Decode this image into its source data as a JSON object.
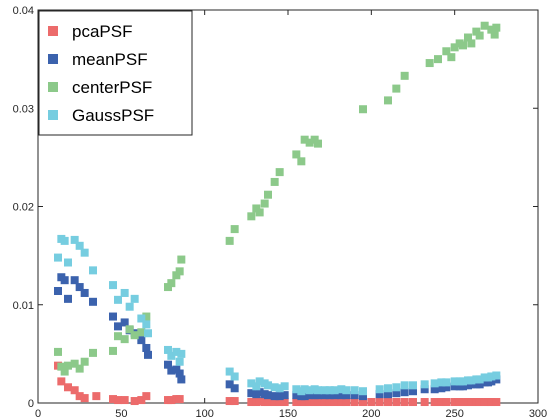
{
  "chart_data": {
    "type": "scatter",
    "title": "",
    "xlabel": "",
    "ylabel": "",
    "xlim": [
      0,
      300
    ],
    "ylim": [
      0,
      0.04
    ],
    "xticks": [
      0,
      50,
      100,
      150,
      200,
      250,
      300
    ],
    "yticks": [
      0,
      0.01,
      0.02,
      0.03,
      0.04
    ],
    "xtick_labels": [
      "0",
      "50",
      "100",
      "150",
      "200",
      "250",
      "300"
    ],
    "ytick_labels": [
      "0",
      "0.01",
      "0.02",
      "0.03",
      "0.04"
    ],
    "grid": false,
    "legend_position": "top-left",
    "series": [
      {
        "name": "pcaPSF",
        "color": "#ec6b6b",
        "points": [
          [
            12,
            0.0038
          ],
          [
            14,
            0.0022
          ],
          [
            18,
            0.0016
          ],
          [
            22,
            0.0013
          ],
          [
            25,
            0.0007
          ],
          [
            28,
            0.0005
          ],
          [
            35,
            0.0007
          ],
          [
            45,
            0.0004
          ],
          [
            48,
            0.0003
          ],
          [
            52,
            0.0003
          ],
          [
            58,
            0.0002
          ],
          [
            62,
            0.0003
          ],
          [
            65,
            0.0007
          ],
          [
            78,
            0.0003
          ],
          [
            80,
            0.0003
          ],
          [
            83,
            0.0004
          ],
          [
            85,
            0.0004
          ],
          [
            115,
            0.0002
          ],
          [
            118,
            0.0002
          ],
          [
            128,
            0.0001
          ],
          [
            131,
            0.0001
          ],
          [
            133,
            0.0002
          ],
          [
            136,
            0.0001
          ],
          [
            138,
            0.0001
          ],
          [
            142,
            0.0001
          ],
          [
            145,
            0.0001
          ],
          [
            148,
            0.0001
          ],
          [
            155,
            0.0001
          ],
          [
            158,
            0.0001
          ],
          [
            160,
            0.0001
          ],
          [
            163,
            0.0001
          ],
          [
            166,
            0.0001
          ],
          [
            168,
            0.0001
          ],
          [
            172,
            0.0001
          ],
          [
            175,
            0.0001
          ],
          [
            178,
            0.0001
          ],
          [
            182,
            0.0001
          ],
          [
            185,
            0.0001
          ],
          [
            190,
            0.0001
          ],
          [
            195,
            0.0001
          ],
          [
            200,
            0.0001
          ],
          [
            205,
            0.0001
          ],
          [
            210,
            0.0001
          ],
          [
            215,
            0.0001
          ],
          [
            220,
            0.0001
          ],
          [
            225,
            0.0001
          ],
          [
            232,
            0.0001
          ],
          [
            238,
            0.0001
          ],
          [
            242,
            0.0001
          ],
          [
            245,
            0.0001
          ],
          [
            250,
            0.0001
          ],
          [
            253,
            0.0001
          ],
          [
            255,
            0.0001
          ],
          [
            258,
            0.0001
          ],
          [
            260,
            0.0001
          ],
          [
            263,
            0.0001
          ],
          [
            265,
            0.0001
          ],
          [
            268,
            0.0001
          ],
          [
            270,
            0.0001
          ],
          [
            272,
            0.0001
          ],
          [
            275,
            0.0001
          ]
        ]
      },
      {
        "name": "meanPSF",
        "color": "#3b62ad",
        "points": [
          [
            12,
            0.0114
          ],
          [
            14,
            0.0128
          ],
          [
            16,
            0.0125
          ],
          [
            18,
            0.0106
          ],
          [
            22,
            0.0125
          ],
          [
            25,
            0.0118
          ],
          [
            28,
            0.0112
          ],
          [
            33,
            0.0103
          ],
          [
            45,
            0.0088
          ],
          [
            48,
            0.0078
          ],
          [
            52,
            0.0082
          ],
          [
            55,
            0.0074
          ],
          [
            58,
            0.0071
          ],
          [
            62,
            0.0064
          ],
          [
            65,
            0.0056
          ],
          [
            66,
            0.0049
          ],
          [
            78,
            0.0039
          ],
          [
            80,
            0.0033
          ],
          [
            83,
            0.0034
          ],
          [
            85,
            0.003
          ],
          [
            86,
            0.0024
          ],
          [
            115,
            0.0019
          ],
          [
            118,
            0.0015
          ],
          [
            128,
            0.001
          ],
          [
            131,
            0.0009
          ],
          [
            133,
            0.0011
          ],
          [
            136,
            0.0009
          ],
          [
            138,
            0.0008
          ],
          [
            142,
            0.0007
          ],
          [
            145,
            0.0007
          ],
          [
            148,
            0.0008
          ],
          [
            155,
            0.0008
          ],
          [
            158,
            0.0007
          ],
          [
            160,
            0.0007
          ],
          [
            163,
            0.0008
          ],
          [
            166,
            0.0008
          ],
          [
            168,
            0.0008
          ],
          [
            172,
            0.0008
          ],
          [
            175,
            0.0008
          ],
          [
            178,
            0.0008
          ],
          [
            182,
            0.0008
          ],
          [
            185,
            0.0008
          ],
          [
            190,
            0.0008
          ],
          [
            195,
            0.0007
          ],
          [
            205,
            0.0009
          ],
          [
            210,
            0.0009
          ],
          [
            215,
            0.001
          ],
          [
            220,
            0.0011
          ],
          [
            225,
            0.0012
          ],
          [
            232,
            0.0014
          ],
          [
            238,
            0.0014
          ],
          [
            242,
            0.0015
          ],
          [
            245,
            0.0016
          ],
          [
            250,
            0.0017
          ],
          [
            253,
            0.0017
          ],
          [
            255,
            0.0017
          ],
          [
            258,
            0.0018
          ],
          [
            260,
            0.0019
          ],
          [
            263,
            0.0019
          ],
          [
            265,
            0.0019
          ],
          [
            268,
            0.0021
          ],
          [
            270,
            0.0021
          ],
          [
            272,
            0.0022
          ],
          [
            275,
            0.0024
          ]
        ]
      },
      {
        "name": "centerPSF",
        "color": "#8cc98a",
        "points": [
          [
            12,
            0.0052
          ],
          [
            14,
            0.0037
          ],
          [
            16,
            0.0032
          ],
          [
            18,
            0.0038
          ],
          [
            22,
            0.004
          ],
          [
            25,
            0.0035
          ],
          [
            28,
            0.0042
          ],
          [
            33,
            0.0051
          ],
          [
            45,
            0.0053
          ],
          [
            48,
            0.0068
          ],
          [
            52,
            0.0065
          ],
          [
            55,
            0.0075
          ],
          [
            58,
            0.0069
          ],
          [
            62,
            0.0072
          ],
          [
            65,
            0.0088
          ],
          [
            78,
            0.0118
          ],
          [
            80,
            0.0122
          ],
          [
            83,
            0.013
          ],
          [
            85,
            0.0134
          ],
          [
            86,
            0.0146
          ],
          [
            115,
            0.0165
          ],
          [
            118,
            0.0177
          ],
          [
            128,
            0.019
          ],
          [
            131,
            0.0198
          ],
          [
            133,
            0.0194
          ],
          [
            136,
            0.0203
          ],
          [
            138,
            0.0212
          ],
          [
            142,
            0.0225
          ],
          [
            145,
            0.0235
          ],
          [
            155,
            0.0253
          ],
          [
            158,
            0.0246
          ],
          [
            160,
            0.0268
          ],
          [
            163,
            0.0265
          ],
          [
            166,
            0.0268
          ],
          [
            168,
            0.0264
          ],
          [
            195,
            0.0299
          ],
          [
            210,
            0.0308
          ],
          [
            215,
            0.032
          ],
          [
            220,
            0.0333
          ],
          [
            235,
            0.0346
          ],
          [
            240,
            0.035
          ],
          [
            245,
            0.0358
          ],
          [
            248,
            0.0352
          ],
          [
            250,
            0.0362
          ],
          [
            253,
            0.0366
          ],
          [
            255,
            0.0364
          ],
          [
            258,
            0.0372
          ],
          [
            260,
            0.0366
          ],
          [
            263,
            0.0378
          ],
          [
            265,
            0.0374
          ],
          [
            268,
            0.0384
          ],
          [
            272,
            0.038
          ],
          [
            274,
            0.0375
          ],
          [
            275,
            0.0382
          ]
        ]
      },
      {
        "name": "GaussPSF",
        "color": "#76cde0",
        "points": [
          [
            12,
            0.0148
          ],
          [
            14,
            0.0167
          ],
          [
            16,
            0.0165
          ],
          [
            18,
            0.0143
          ],
          [
            22,
            0.0166
          ],
          [
            25,
            0.016
          ],
          [
            28,
            0.0153
          ],
          [
            33,
            0.0135
          ],
          [
            45,
            0.012
          ],
          [
            48,
            0.0105
          ],
          [
            52,
            0.0112
          ],
          [
            55,
            0.0098
          ],
          [
            58,
            0.0106
          ],
          [
            62,
            0.0086
          ],
          [
            65,
            0.008
          ],
          [
            66,
            0.0071
          ],
          [
            78,
            0.0054
          ],
          [
            80,
            0.0048
          ],
          [
            83,
            0.0052
          ],
          [
            85,
            0.0042
          ],
          [
            86,
            0.005
          ],
          [
            115,
            0.0032
          ],
          [
            118,
            0.0027
          ],
          [
            128,
            0.002
          ],
          [
            131,
            0.0017
          ],
          [
            133,
            0.0022
          ],
          [
            136,
            0.002
          ],
          [
            138,
            0.0018
          ],
          [
            142,
            0.0016
          ],
          [
            145,
            0.0015
          ],
          [
            148,
            0.0017
          ],
          [
            155,
            0.0014
          ],
          [
            158,
            0.0012
          ],
          [
            160,
            0.0014
          ],
          [
            163,
            0.0013
          ],
          [
            166,
            0.0014
          ],
          [
            168,
            0.0013
          ],
          [
            172,
            0.0013
          ],
          [
            175,
            0.0013
          ],
          [
            178,
            0.0013
          ],
          [
            182,
            0.0014
          ],
          [
            185,
            0.0013
          ],
          [
            190,
            0.0013
          ],
          [
            195,
            0.0012
          ],
          [
            205,
            0.0014
          ],
          [
            210,
            0.0015
          ],
          [
            215,
            0.0016
          ],
          [
            220,
            0.0018
          ],
          [
            225,
            0.0018
          ],
          [
            232,
            0.0019
          ],
          [
            238,
            0.002
          ],
          [
            242,
            0.0021
          ],
          [
            245,
            0.0021
          ],
          [
            250,
            0.0022
          ],
          [
            253,
            0.0022
          ],
          [
            255,
            0.0022
          ],
          [
            258,
            0.0023
          ],
          [
            260,
            0.0023
          ],
          [
            263,
            0.0024
          ],
          [
            265,
            0.0024
          ],
          [
            268,
            0.0026
          ],
          [
            270,
            0.0026
          ],
          [
            272,
            0.0027
          ],
          [
            275,
            0.0028
          ]
        ]
      }
    ]
  }
}
